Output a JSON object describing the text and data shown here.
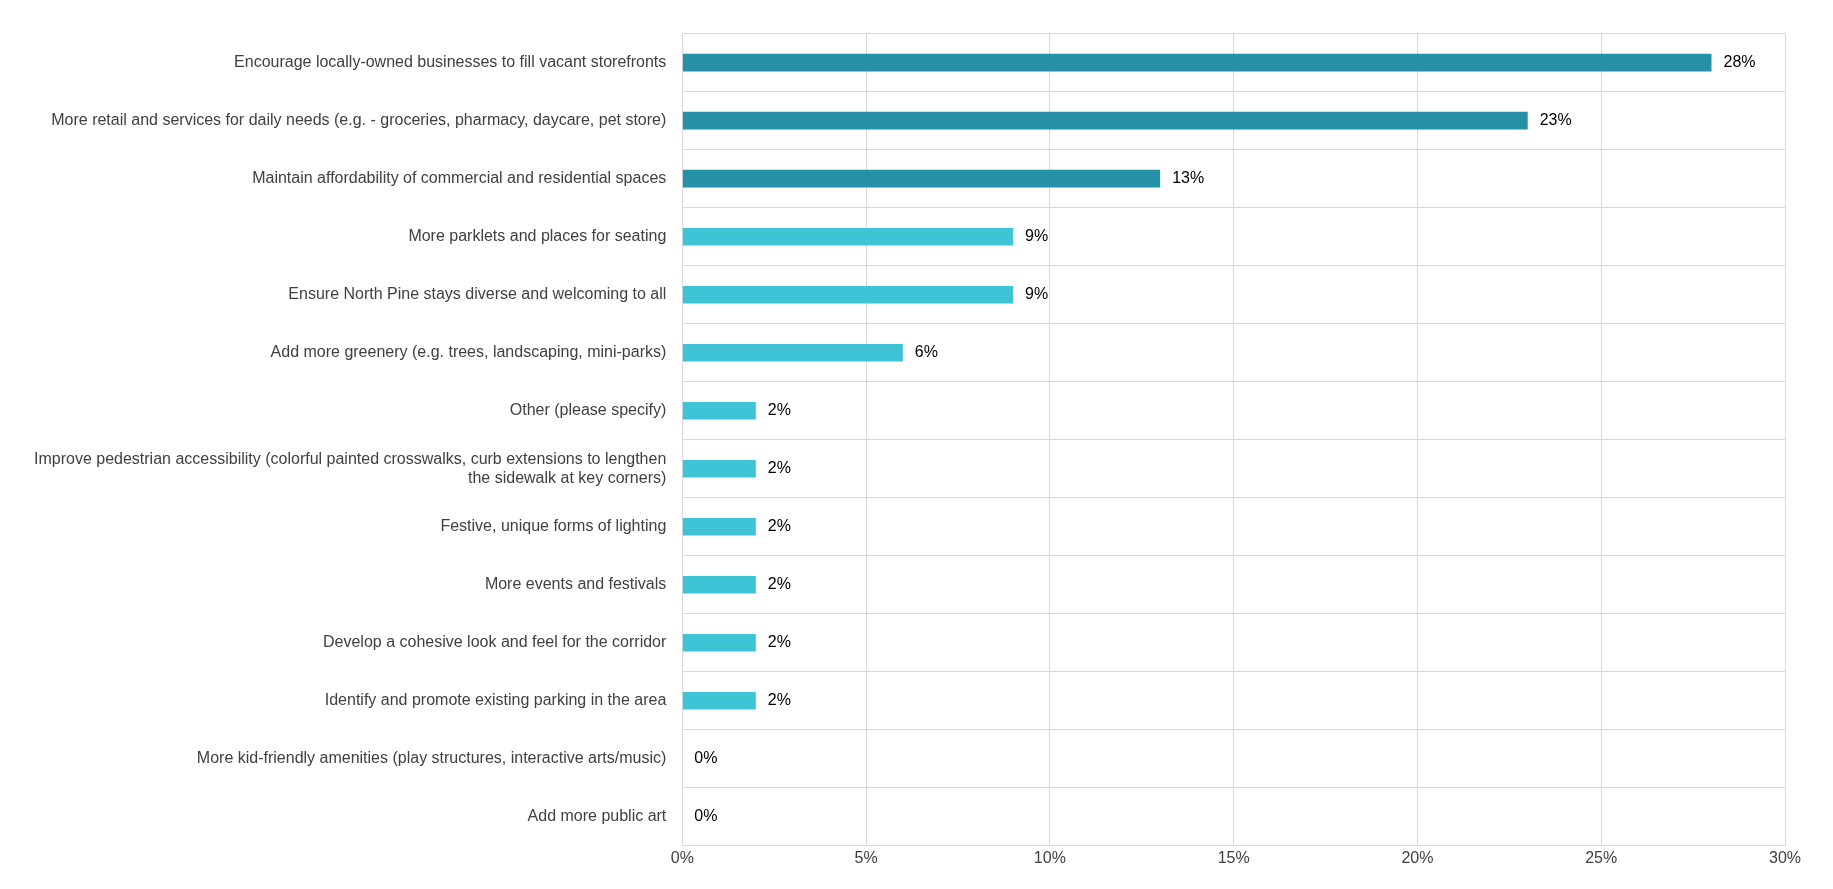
{
  "chart_data": {
    "type": "bar",
    "orientation": "horizontal",
    "categories": [
      "Encourage locally-owned businesses to fill vacant storefronts",
      "More retail and services for daily needs (e.g. - groceries, pharmacy, daycare, pet store)",
      "Maintain affordability of commercial and residential spaces",
      "More parklets and places for seating",
      "Ensure North Pine stays diverse and welcoming to all",
      "Add more greenery (e.g. trees, landscaping, mini-parks)",
      "Other (please specify)",
      "Improve pedestrian accessibility (colorful painted crosswalks, curb extensions to lengthen the sidewalk at key corners)",
      "Festive, unique forms of lighting",
      "More events and festivals",
      "Develop a cohesive look and feel for the corridor",
      "Identify and promote existing parking in the area",
      "More kid-friendly amenities (play structures, interactive arts/music)",
      "Add more public art"
    ],
    "values": [
      28,
      23,
      13,
      9,
      9,
      6,
      2,
      2,
      2,
      2,
      2,
      2,
      0,
      0
    ],
    "value_labels": [
      "28%",
      "23%",
      "13%",
      "9%",
      "9%",
      "6%",
      "2%",
      "2%",
      "2%",
      "2%",
      "2%",
      "2%",
      "0%",
      "0%"
    ],
    "colors": [
      "#2690a6",
      "#2690a6",
      "#2690a6",
      "#3fc3d7",
      "#3fc3d7",
      "#3fc3d7",
      "#3fc3d7",
      "#3fc3d7",
      "#3fc3d7",
      "#3fc3d7",
      "#3fc3d7",
      "#3fc3d7",
      "#3fc3d7",
      "#3fc3d7"
    ],
    "xlim": [
      0,
      30
    ],
    "xticks": [
      {
        "value": 0,
        "label": "0%"
      },
      {
        "value": 5,
        "label": "5%"
      },
      {
        "value": 10,
        "label": "10%"
      },
      {
        "value": 15,
        "label": "15%"
      },
      {
        "value": 20,
        "label": "20%"
      },
      {
        "value": 25,
        "label": "25%"
      },
      {
        "value": 30,
        "label": "30%"
      }
    ],
    "grid": true,
    "legend": false
  }
}
